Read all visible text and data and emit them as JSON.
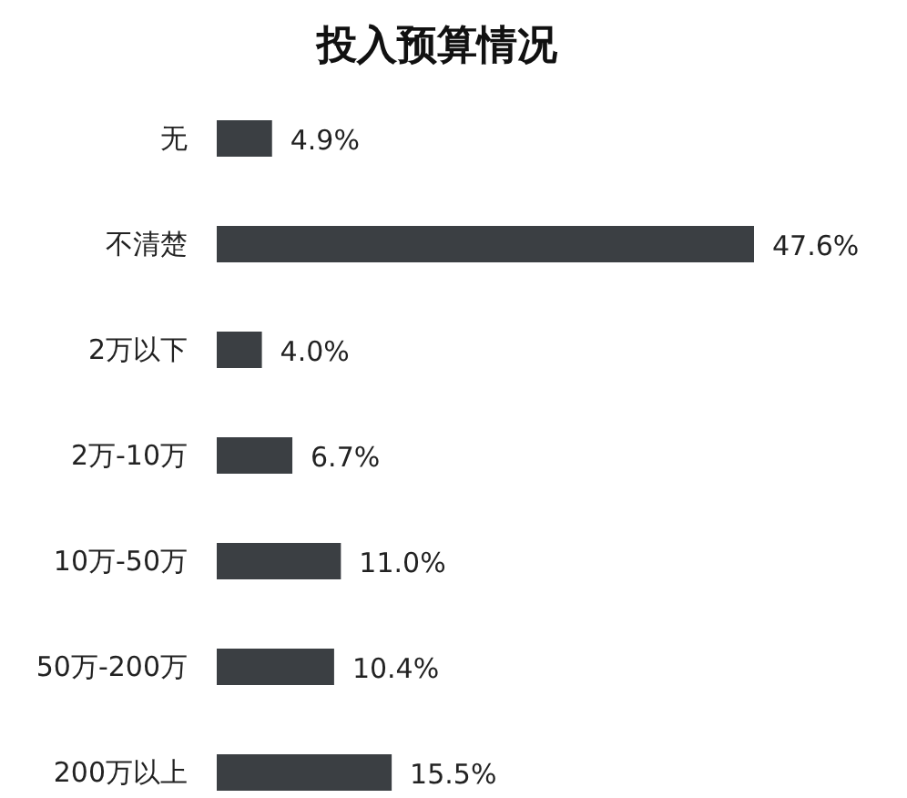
{
  "chart_data": {
    "type": "bar",
    "orientation": "horizontal",
    "title": "投入预算情况",
    "categories": [
      "无",
      "不清楚",
      "2万以下",
      "2万-10万",
      "10万-50万",
      "50万-200万",
      "200万以上"
    ],
    "values": [
      4.9,
      47.6,
      4.0,
      6.7,
      11.0,
      10.4,
      15.5
    ],
    "value_labels": [
      "4.9%",
      "47.6%",
      "4.0%",
      "6.7%",
      "11.0%",
      "10.4%",
      "15.5%"
    ],
    "color": "#3b3f43"
  }
}
